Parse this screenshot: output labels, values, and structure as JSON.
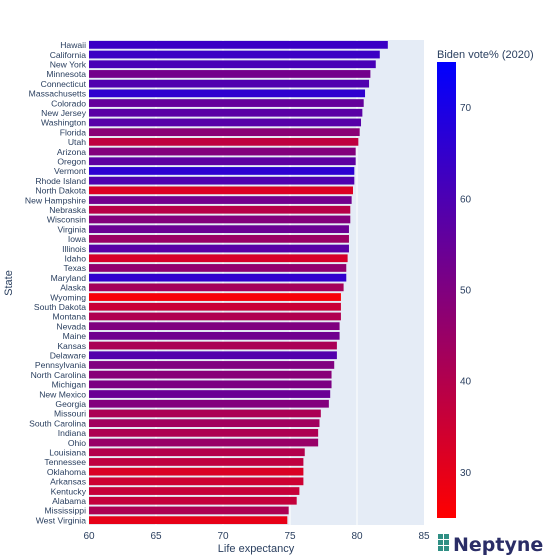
{
  "chart_data": {
    "type": "bar",
    "orientation": "horizontal",
    "xlabel": "Life expectancy",
    "ylabel": "State",
    "xlim": [
      60,
      85
    ],
    "xticks": [
      60,
      65,
      70,
      75,
      80,
      85
    ],
    "grid": true,
    "colorbar": {
      "title": "Biden vote% (2020)",
      "range": [
        25,
        75
      ],
      "ticks": [
        30,
        40,
        50,
        60,
        70
      ],
      "colors": [
        "#ff0000",
        "#0000ff"
      ]
    },
    "categories": [
      "Hawaii",
      "California",
      "New York",
      "Minnesota",
      "Connecticut",
      "Massachusetts",
      "Colorado",
      "New Jersey",
      "Washington",
      "Florida",
      "Utah",
      "Arizona",
      "Oregon",
      "Vermont",
      "Rhode Island",
      "North Dakota",
      "New Hampshire",
      "Nebraska",
      "Wisconsin",
      "Virginia",
      "Iowa",
      "Illinois",
      "Idaho",
      "Texas",
      "Maryland",
      "Alaska",
      "Wyoming",
      "South Dakota",
      "Montana",
      "Nevada",
      "Maine",
      "Kansas",
      "Delaware",
      "Pennsylvania",
      "North Carolina",
      "Michigan",
      "New Mexico",
      "Georgia",
      "Missouri",
      "South Carolina",
      "Indiana",
      "Ohio",
      "Louisiana",
      "Tennessee",
      "Oklahoma",
      "Arkansas",
      "Kentucky",
      "Alabama",
      "Mississippi",
      "West Virginia"
    ],
    "values": [
      82.3,
      81.7,
      81.4,
      81.0,
      80.9,
      80.6,
      80.5,
      80.4,
      80.3,
      80.2,
      80.1,
      79.9,
      79.9,
      79.8,
      79.8,
      79.7,
      79.6,
      79.5,
      79.5,
      79.4,
      79.4,
      79.4,
      79.3,
      79.2,
      79.2,
      79.0,
      78.8,
      78.8,
      78.8,
      78.7,
      78.7,
      78.5,
      78.5,
      78.3,
      78.1,
      78.1,
      78.0,
      77.9,
      77.3,
      77.2,
      77.1,
      77.1,
      76.1,
      76.0,
      76.0,
      76.0,
      75.7,
      75.5,
      74.9,
      74.8
    ],
    "biden_vote_pct": [
      63.7,
      63.5,
      60.9,
      52.4,
      59.3,
      65.6,
      55.4,
      57.3,
      58.0,
      47.9,
      37.6,
      49.4,
      56.5,
      66.1,
      59.4,
      31.8,
      52.7,
      39.2,
      49.4,
      54.1,
      44.9,
      57.5,
      33.1,
      46.5,
      65.4,
      42.8,
      26.6,
      35.6,
      40.5,
      50.1,
      53.1,
      41.6,
      58.7,
      50.0,
      48.6,
      50.6,
      54.3,
      49.5,
      41.4,
      43.4,
      41.0,
      45.2,
      39.9,
      37.5,
      32.3,
      34.8,
      36.2,
      36.6,
      41.1,
      29.7
    ]
  },
  "brand": {
    "name": "Neptyne"
  }
}
